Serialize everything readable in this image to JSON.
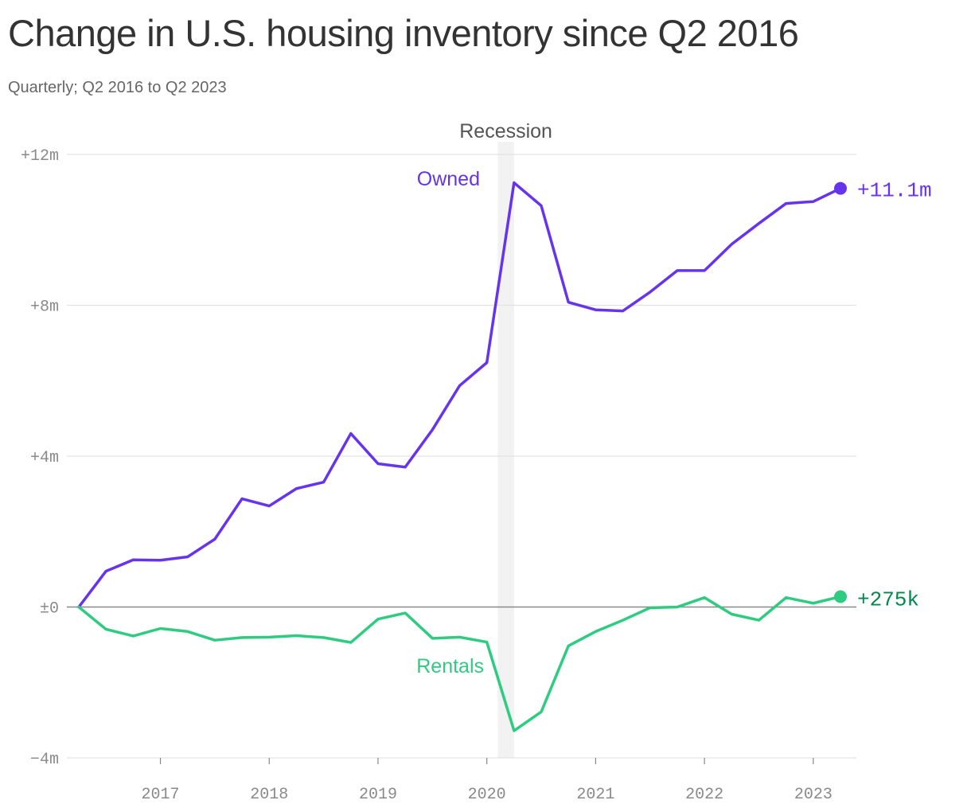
{
  "title": "Change in U.S. housing inventory since Q2 2016",
  "subtitle": "Quarterly; Q2 2016 to Q2 2023",
  "colors": {
    "owned": "#6633ee",
    "rentals": "#2ecc80",
    "rentals_label": "#00884d",
    "recession_band": "#f2f2f2",
    "grid": "#e3e3e3",
    "zero_line": "#888888"
  },
  "chart_data": {
    "type": "line",
    "title": "Change in U.S. housing inventory since Q2 2016",
    "subtitle": "Quarterly; Q2 2016 to Q2 2023",
    "xlabel": "",
    "ylabel": "",
    "x": [
      "Q2 2016",
      "Q3 2016",
      "Q4 2016",
      "Q1 2017",
      "Q2 2017",
      "Q3 2017",
      "Q4 2017",
      "Q1 2018",
      "Q2 2018",
      "Q3 2018",
      "Q4 2018",
      "Q1 2019",
      "Q2 2019",
      "Q3 2019",
      "Q4 2019",
      "Q1 2020",
      "Q2 2020",
      "Q3 2020",
      "Q4 2020",
      "Q1 2021",
      "Q2 2021",
      "Q3 2021",
      "Q4 2021",
      "Q1 2022",
      "Q2 2022",
      "Q3 2022",
      "Q4 2022",
      "Q1 2023",
      "Q2 2023"
    ],
    "x_numeric": [
      2016.25,
      2016.5,
      2016.75,
      2017.0,
      2017.25,
      2017.5,
      2017.75,
      2018.0,
      2018.25,
      2018.5,
      2018.75,
      2019.0,
      2019.25,
      2019.5,
      2019.75,
      2020.0,
      2020.25,
      2020.5,
      2020.75,
      2021.0,
      2021.25,
      2021.5,
      2021.75,
      2022.0,
      2022.25,
      2022.5,
      2022.75,
      2023.0,
      2023.25
    ],
    "series": [
      {
        "name": "Owned",
        "key": "owned",
        "values": [
          0,
          0.95,
          1.25,
          1.24,
          1.33,
          1.8,
          2.87,
          2.68,
          3.14,
          3.31,
          4.6,
          3.8,
          3.71,
          4.7,
          5.87,
          6.48,
          11.25,
          10.64,
          8.08,
          7.88,
          7.85,
          8.35,
          8.92,
          8.92,
          9.62,
          10.17,
          10.7,
          10.75,
          11.1
        ]
      },
      {
        "name": "Rentals",
        "key": "rentals",
        "values": [
          0,
          -0.59,
          -0.77,
          -0.57,
          -0.65,
          -0.88,
          -0.81,
          -0.8,
          -0.76,
          -0.81,
          -0.94,
          -0.32,
          -0.16,
          -0.83,
          -0.8,
          -0.93,
          -3.28,
          -2.78,
          -1.03,
          -0.65,
          -0.35,
          -0.02,
          0,
          0.25,
          -0.19,
          -0.35,
          0.25,
          0.1,
          0.275
        ]
      }
    ],
    "end_labels": {
      "owned": "+11.1m",
      "rentals": "+275k"
    },
    "recession": {
      "label": "Recession",
      "start": 2020.1,
      "end": 2020.25
    },
    "y_ticks": [
      {
        "value": 12,
        "label": "+12m"
      },
      {
        "value": 8,
        "label": "+8m"
      },
      {
        "value": 4,
        "label": "+4m"
      },
      {
        "value": 0,
        "label": "±0"
      },
      {
        "value": -4,
        "label": "−4m"
      }
    ],
    "x_ticks": [
      {
        "value": 2017,
        "label": "2017"
      },
      {
        "value": 2018,
        "label": "2018"
      },
      {
        "value": 2019,
        "label": "2019"
      },
      {
        "value": 2020,
        "label": "2020"
      },
      {
        "value": 2021,
        "label": "2021"
      },
      {
        "value": 2022,
        "label": "2022"
      },
      {
        "value": 2023,
        "label": "2023"
      }
    ],
    "ylim": [
      -4,
      12
    ],
    "xlim": [
      2016.25,
      2023.25
    ],
    "grid": true
  }
}
